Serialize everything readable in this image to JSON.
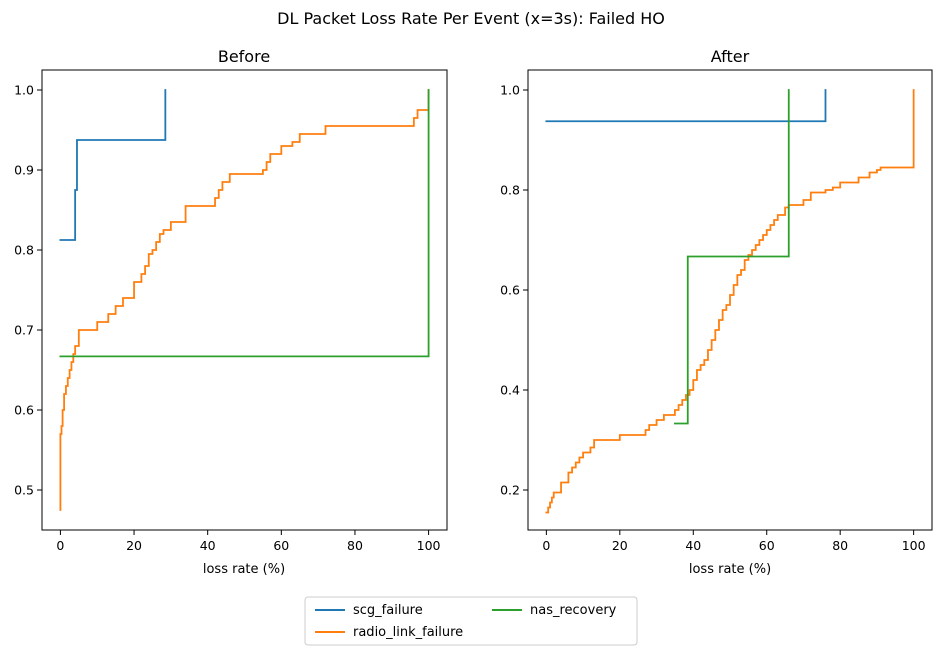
{
  "suptitle": "DL Packet Loss Rate Per Event (x=3s): Failed HO",
  "legend": {
    "entries": [
      {
        "label": "scg_failure",
        "color": "#1f77b4"
      },
      {
        "label": "radio_link_failure",
        "color": "#ff7f0e"
      },
      {
        "label": "nas_recovery",
        "color": "#2ca02c"
      }
    ],
    "placement": "lower-center"
  },
  "chart_data": [
    {
      "type": "line",
      "step": true,
      "title": "Before",
      "xlabel": "loss rate (%)",
      "ylabel": "",
      "xlim": [
        -5,
        105
      ],
      "ylim": [
        0.45,
        1.025
      ],
      "xticks": [
        0,
        20,
        40,
        60,
        80,
        100
      ],
      "yticks": [
        0.5,
        0.6,
        0.7,
        0.8,
        0.9,
        1.0
      ],
      "ytick_labels": [
        "0.5",
        "0.6",
        "0.7",
        "0.8",
        "0.9",
        "1.0"
      ],
      "grid": false,
      "series": [
        {
          "name": "scg_failure",
          "color": "#1f77b4",
          "x": [
            0,
            4,
            4,
            4.5,
            4.5,
            28.5,
            28.5
          ],
          "y": [
            0.8125,
            0.8125,
            0.875,
            0.875,
            0.9375,
            0.9375,
            1.0
          ]
        },
        {
          "name": "radio_link_failure",
          "color": "#ff7f0e",
          "x": [
            0,
            0,
            0.3,
            0.6,
            1.0,
            1.5,
            2.0,
            2.5,
            3.0,
            3.5,
            4.0,
            5.0,
            10,
            13,
            15,
            17,
            20,
            22,
            23,
            24,
            25,
            26,
            27,
            28,
            30,
            34,
            37,
            42,
            43,
            44,
            46,
            50,
            55,
            56,
            57,
            60,
            61,
            63,
            65,
            68,
            70,
            72,
            75,
            80,
            95,
            96,
            97,
            99,
            100
          ],
          "y": [
            0.475,
            0.57,
            0.58,
            0.6,
            0.62,
            0.63,
            0.64,
            0.65,
            0.66,
            0.67,
            0.68,
            0.7,
            0.71,
            0.72,
            0.73,
            0.74,
            0.76,
            0.77,
            0.78,
            0.795,
            0.8,
            0.81,
            0.82,
            0.825,
            0.835,
            0.855,
            0.855,
            0.865,
            0.875,
            0.885,
            0.895,
            0.895,
            0.9,
            0.91,
            0.92,
            0.93,
            0.93,
            0.935,
            0.945,
            0.945,
            0.945,
            0.955,
            0.955,
            0.955,
            0.955,
            0.965,
            0.975,
            0.975,
            1.0
          ]
        },
        {
          "name": "nas_recovery",
          "color": "#2ca02c",
          "x": [
            0,
            100,
            100
          ],
          "y": [
            0.667,
            0.667,
            1.0
          ]
        }
      ]
    },
    {
      "type": "line",
      "step": true,
      "title": "After",
      "xlabel": "loss rate (%)",
      "ylabel": "",
      "xlim": [
        -5,
        105
      ],
      "ylim": [
        0.12,
        1.04
      ],
      "xticks": [
        0,
        20,
        40,
        60,
        80,
        100
      ],
      "yticks": [
        0.2,
        0.4,
        0.6,
        0.8,
        1.0
      ],
      "ytick_labels": [
        "0.2",
        "0.4",
        "0.6",
        "0.8",
        "1.0"
      ],
      "grid": false,
      "series": [
        {
          "name": "scg_failure",
          "color": "#1f77b4",
          "x": [
            0,
            76,
            76
          ],
          "y": [
            0.9375,
            0.9375,
            1.0
          ]
        },
        {
          "name": "radio_link_failure",
          "color": "#ff7f0e",
          "x": [
            0,
            0.5,
            1.0,
            1.5,
            2.0,
            4.0,
            6.0,
            7.0,
            8.0,
            9.0,
            10.0,
            12.0,
            13.0,
            20.0,
            27.0,
            28.0,
            30.0,
            32.0,
            35.0,
            36.0,
            37.0,
            38.0,
            39.0,
            40.0,
            41.0,
            42.0,
            43.0,
            44.0,
            45.0,
            46.0,
            47.0,
            48.0,
            49.0,
            50.0,
            51.0,
            52.0,
            53.0,
            54.0,
            55.0,
            56.0,
            57.0,
            58.0,
            59.0,
            60.0,
            61.0,
            62.0,
            63.0,
            65.0,
            66.0,
            70.0,
            72.0,
            76.0,
            78.0,
            80.0,
            85.0,
            88.0,
            90.0,
            91.0,
            100.0
          ],
          "y": [
            0.155,
            0.165,
            0.175,
            0.185,
            0.195,
            0.215,
            0.235,
            0.245,
            0.255,
            0.265,
            0.275,
            0.285,
            0.3,
            0.31,
            0.32,
            0.33,
            0.34,
            0.35,
            0.36,
            0.37,
            0.38,
            0.39,
            0.4,
            0.42,
            0.44,
            0.45,
            0.46,
            0.48,
            0.5,
            0.52,
            0.54,
            0.56,
            0.57,
            0.59,
            0.61,
            0.63,
            0.64,
            0.66,
            0.67,
            0.68,
            0.69,
            0.7,
            0.71,
            0.72,
            0.73,
            0.74,
            0.75,
            0.765,
            0.77,
            0.78,
            0.795,
            0.8,
            0.805,
            0.815,
            0.825,
            0.835,
            0.84,
            0.845,
            1.0
          ]
        },
        {
          "name": "nas_recovery",
          "color": "#2ca02c",
          "x": [
            35,
            38.5,
            38.5,
            66,
            66
          ],
          "y": [
            0.333,
            0.333,
            0.667,
            0.667,
            1.0
          ]
        }
      ]
    }
  ]
}
